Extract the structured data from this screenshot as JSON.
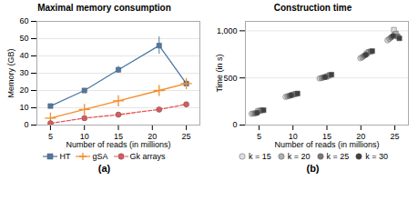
{
  "chart_data": [
    {
      "type": "line",
      "title": "Maximal memory consumption",
      "xlabel": "Number of reads (in millions)",
      "ylabel": "Memory (GB)",
      "x": [
        5,
        10,
        15,
        21,
        25
      ],
      "series": [
        {
          "name": "HT",
          "values": [
            11,
            20,
            32,
            46,
            24
          ],
          "errors": [
            0,
            0,
            2,
            5,
            0
          ],
          "marker": "square",
          "line_style": "solid"
        },
        {
          "name": "gSA",
          "values": [
            4,
            9,
            14,
            20,
            24
          ],
          "marker": "plus",
          "line_style": "solid"
        },
        {
          "name": "Gk arrays",
          "values": [
            1,
            4,
            6,
            9,
            12
          ],
          "marker": "circle",
          "line_style": "dashed"
        }
      ],
      "xlim": [
        3,
        27
      ],
      "xticks": [
        5,
        10,
        15,
        20,
        25
      ],
      "ylim": [
        0,
        60
      ],
      "yticks": [
        0,
        10,
        20,
        30,
        40,
        50,
        60
      ],
      "grid": true,
      "legend": "bottom",
      "annotation": "(a)"
    },
    {
      "type": "scatter",
      "title": "Construction time",
      "xlabel": "Number of reads (in millions)",
      "ylabel": "Time (in s)",
      "x": [
        5,
        10,
        15,
        21,
        25
      ],
      "series": [
        {
          "name": "k = 15",
          "color": "#e0e0e0",
          "marker": "square",
          "values": [
            150,
            320,
            510,
            760,
            1010
          ]
        },
        {
          "name": "k = 15",
          "color": "#e0e0e0",
          "marker": "circle",
          "values": [
            120,
            300,
            495,
            710,
            900
          ]
        },
        {
          "name": "k = 20",
          "color": "#b0b0b0",
          "marker": "square",
          "values": [
            153,
            325,
            520,
            775,
            970
          ]
        },
        {
          "name": "k = 20",
          "color": "#b0b0b0",
          "marker": "circle",
          "values": [
            123,
            305,
            500,
            720,
            915
          ]
        },
        {
          "name": "k = 25",
          "color": "#787878",
          "marker": "square",
          "values": [
            156,
            330,
            530,
            780,
            940
          ]
        },
        {
          "name": "k = 25",
          "color": "#787878",
          "marker": "circle",
          "values": [
            126,
            310,
            505,
            735,
            930
          ]
        },
        {
          "name": "k = 30",
          "color": "#404040",
          "marker": "square",
          "values": [
            158,
            335,
            535,
            785,
            920
          ]
        },
        {
          "name": "k = 30",
          "color": "#404040",
          "marker": "circle",
          "values": [
            130,
            315,
            510,
            745,
            945
          ]
        }
      ],
      "xlim": [
        3,
        27
      ],
      "xticks": [
        5,
        10,
        15,
        20,
        25
      ],
      "ylim": [
        0,
        1100
      ],
      "yticks": [
        0,
        500,
        {
          "value": 1000,
          "label": "1,000"
        }
      ],
      "grid": true,
      "legend": "bottom",
      "annotation": "(b)"
    }
  ]
}
